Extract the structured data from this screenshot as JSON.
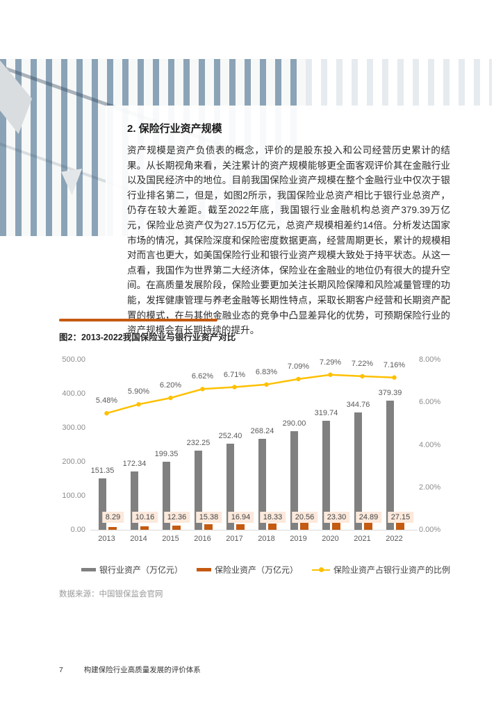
{
  "section": {
    "title": "2. 保险行业资产规模",
    "paragraph": "资产规模是资产负债表的概念，评价的是股东投入和公司经营历史累计的结果。从长期视角来看，关注累计的资产规模能够更全面客观评价其在金融行业以及国民经济中的地位。目前我国保险业资产规模在整个金融行业中仅次于银行业排名第二，但是，如图2所示，我国保险业总资产相比于银行业总资产，仍存在较大差距。截至2022年底，我国银行业金融机构总资产379.39万亿元，保险业总资产仅为27.15万亿元，总资产规模相差约14倍。分析发达国家市场的情况，其保险深度和保险密度数据更高，经营周期更长，累计的规模相对而言也更大，如美国保险行业和银行业资产规模大致处于持平状态。从这一点看，我国作为世界第二大经济体，保险业在金融业的地位仍有很大的提升空间。在高质量发展阶段，保险业要更加关注长期风险保障和风险减量管理的功能，发挥健康管理与养老金融等长期性特点，采取长期客户经营和长期资产配置的模式，在与其他金融业态的竞争中凸显差异化的优势，可预期保险行业的资产规模会有长期持续的提升。"
  },
  "chart_data": {
    "type": "bar+line",
    "title": "图2：2013-2022我国保险业与银行业资产对比",
    "categories": [
      "2013",
      "2014",
      "2015",
      "2016",
      "2017",
      "2018",
      "2019",
      "2020",
      "2021",
      "2022"
    ],
    "series": [
      {
        "name": "银行业资产（万亿元）",
        "type": "bar",
        "axis": "left",
        "color": "#808080",
        "values": [
          151.35,
          172.34,
          199.35,
          232.25,
          252.4,
          268.24,
          290.0,
          319.74,
          344.76,
          379.39
        ]
      },
      {
        "name": "保险业资产（万亿元）",
        "type": "bar",
        "axis": "left",
        "color": "#C55A11",
        "values": [
          8.29,
          10.16,
          12.36,
          15.38,
          16.94,
          18.33,
          20.56,
          23.3,
          24.89,
          27.15
        ]
      },
      {
        "name": "保险业资产占银行业资产的比例",
        "type": "line",
        "axis": "right",
        "color": "#FFC000",
        "values": [
          5.48,
          5.9,
          6.2,
          6.62,
          6.71,
          6.83,
          7.09,
          7.29,
          7.22,
          7.16
        ]
      }
    ],
    "left_axis": {
      "min": 0,
      "max": 500,
      "step": 100
    },
    "right_axis": {
      "min": 0,
      "max": 8,
      "step": 2,
      "unit": "%"
    },
    "legend_position": "bottom",
    "grid": false,
    "source": "数据来源：中国银保监会官网"
  },
  "colors": {
    "accent_orange": "#C55A11",
    "line_yellow": "#FFC000",
    "bar_gray": "#808080",
    "insurance_label_bg": "#FBE9DC",
    "stripe_blue": "#8BA3B6"
  },
  "footer": {
    "page_number": "7",
    "doc_title": "构建保险行业高质量发展的评价体系"
  }
}
